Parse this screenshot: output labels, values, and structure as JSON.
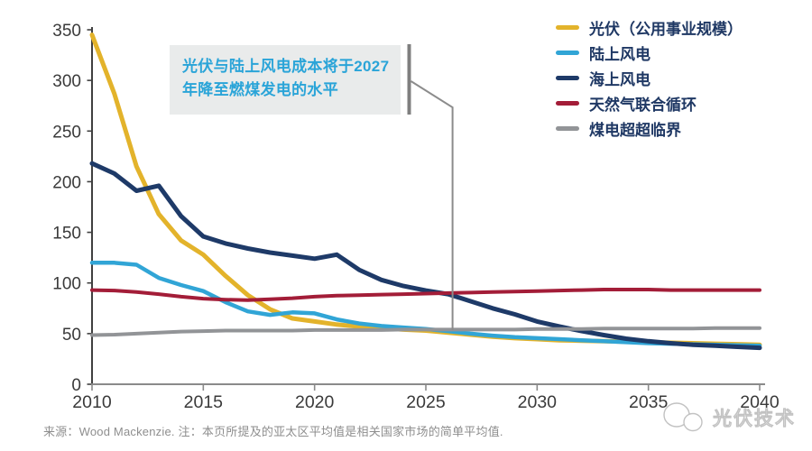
{
  "chart_data": {
    "type": "line",
    "title": "",
    "xlabel": "",
    "ylabel": "",
    "xlim": [
      2010,
      2040
    ],
    "ylim": [
      0,
      350
    ],
    "xticks": [
      2010,
      2015,
      2020,
      2025,
      2030,
      2035,
      2040
    ],
    "yticks": [
      0,
      50,
      100,
      150,
      200,
      250,
      300,
      350
    ],
    "grid": false,
    "legend_position": "top-right",
    "x": [
      2010,
      2011,
      2012,
      2013,
      2014,
      2015,
      2016,
      2017,
      2018,
      2019,
      2020,
      2021,
      2022,
      2023,
      2024,
      2025,
      2026,
      2027,
      2028,
      2029,
      2030,
      2031,
      2032,
      2033,
      2034,
      2035,
      2036,
      2037,
      2038,
      2039,
      2040
    ],
    "series": [
      {
        "id": "solar-pv",
        "name": "光伏（公用事业规模）",
        "color": "#e3b32b",
        "width": 5,
        "values": [
          345,
          287,
          215,
          168,
          142,
          128,
          107,
          88,
          74,
          65,
          62,
          59,
          57,
          55.5,
          54,
          53,
          51,
          49,
          47,
          45.5,
          44.5,
          43.5,
          43,
          42.5,
          42,
          41.5,
          41,
          40.5,
          40,
          39.5,
          39
        ]
      },
      {
        "id": "onshore-wind",
        "name": "陆上风电",
        "color": "#31a5d6",
        "width": 4.5,
        "values": [
          120,
          120,
          118,
          105,
          98,
          92,
          81,
          72,
          68.5,
          71,
          70,
          64,
          60,
          57.5,
          56,
          54.5,
          52.5,
          50,
          48,
          46.5,
          45.5,
          44.5,
          43.5,
          42.5,
          41.5,
          40.5,
          40,
          39.5,
          39,
          38.5,
          38
        ]
      },
      {
        "id": "offshore-wind",
        "name": "海上风电",
        "color": "#1e3a68",
        "width": 5,
        "values": [
          218,
          208,
          191,
          196,
          166,
          146,
          139,
          134,
          130,
          127,
          124,
          128,
          113,
          103,
          97,
          92.5,
          89,
          82,
          75,
          69,
          62,
          57,
          52.5,
          48.5,
          45,
          42.5,
          40.5,
          39,
          38,
          37,
          36
        ]
      },
      {
        "id": "gas-combined-cycle",
        "name": "天然气联合循环",
        "color": "#a31d38",
        "width": 4,
        "values": [
          93,
          92.5,
          91,
          89,
          86.5,
          84.5,
          83.5,
          83,
          84,
          85,
          86.5,
          87.5,
          88,
          88.5,
          89,
          89.5,
          90,
          90.5,
          91,
          91.5,
          92,
          92.5,
          93,
          93.5,
          93.5,
          93.5,
          93,
          93,
          93,
          93,
          93
        ]
      },
      {
        "id": "coal-ultra-supercritical",
        "name": "煤电超超临界",
        "color": "#929497",
        "width": 4,
        "values": [
          48.5,
          49,
          50,
          51,
          52,
          52.5,
          53,
          53,
          53,
          53,
          53.5,
          53.5,
          53.5,
          53.5,
          54,
          54,
          54,
          54,
          54,
          54,
          54.5,
          54.5,
          54.5,
          55,
          55,
          55,
          55,
          55,
          55.5,
          55.5,
          55.5
        ]
      }
    ],
    "annotation_target_year": 2026.2
  },
  "annotation": {
    "line1": "光伏与陆上风电成本将于2027",
    "line2": "年降至燃煤发电的水平",
    "text_color": "#2aa4d8",
    "box_bg": "#e9ebeb"
  },
  "footer": {
    "source": "来源：Wood Mackenzie.  注：本页所提及的亚太区平均值是相关国家市场的简单平均值."
  },
  "watermark": {
    "text": "光伏技术"
  },
  "colors": {
    "axis_y": "#404040",
    "axis_x": "#8a8a8a",
    "tick_label": "#3a3a3a",
    "callout": "#8c8c8c"
  }
}
